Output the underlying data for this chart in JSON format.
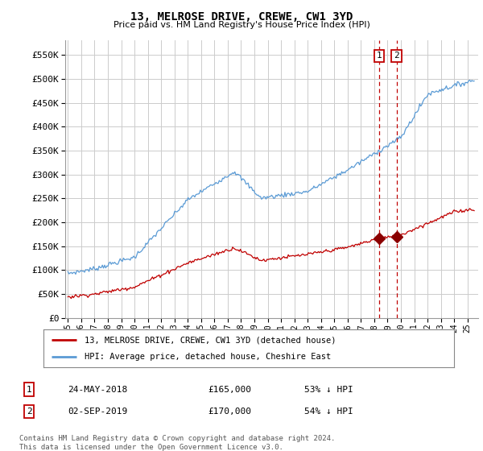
{
  "title": "13, MELROSE DRIVE, CREWE, CW1 3YD",
  "subtitle": "Price paid vs. HM Land Registry's House Price Index (HPI)",
  "ylim": [
    0,
    580000
  ],
  "yticks": [
    0,
    50000,
    100000,
    150000,
    200000,
    250000,
    300000,
    350000,
    400000,
    450000,
    500000,
    550000
  ],
  "ytick_labels": [
    "£0",
    "£50K",
    "£100K",
    "£150K",
    "£200K",
    "£250K",
    "£300K",
    "£350K",
    "£400K",
    "£450K",
    "£500K",
    "£550K"
  ],
  "hpi_color": "#5b9bd5",
  "price_color": "#c00000",
  "marker_color": "#8b0000",
  "vline_color": "#c00000",
  "annotation_box_color": "#c00000",
  "legend_label_price": "13, MELROSE DRIVE, CREWE, CW1 3YD (detached house)",
  "legend_label_hpi": "HPI: Average price, detached house, Cheshire East",
  "transaction1_num": "1",
  "transaction1_date": "24-MAY-2018",
  "transaction1_price": "£165,000",
  "transaction1_pct": "53% ↓ HPI",
  "transaction2_num": "2",
  "transaction2_date": "02-SEP-2019",
  "transaction2_price": "£170,000",
  "transaction2_pct": "54% ↓ HPI",
  "footer": "Contains HM Land Registry data © Crown copyright and database right 2024.\nThis data is licensed under the Open Government Licence v3.0.",
  "transaction1_x": 2018.38,
  "transaction2_x": 2019.67,
  "background_color": "#ffffff",
  "grid_color": "#cccccc",
  "xmin": 1994.8,
  "xmax": 2025.8
}
